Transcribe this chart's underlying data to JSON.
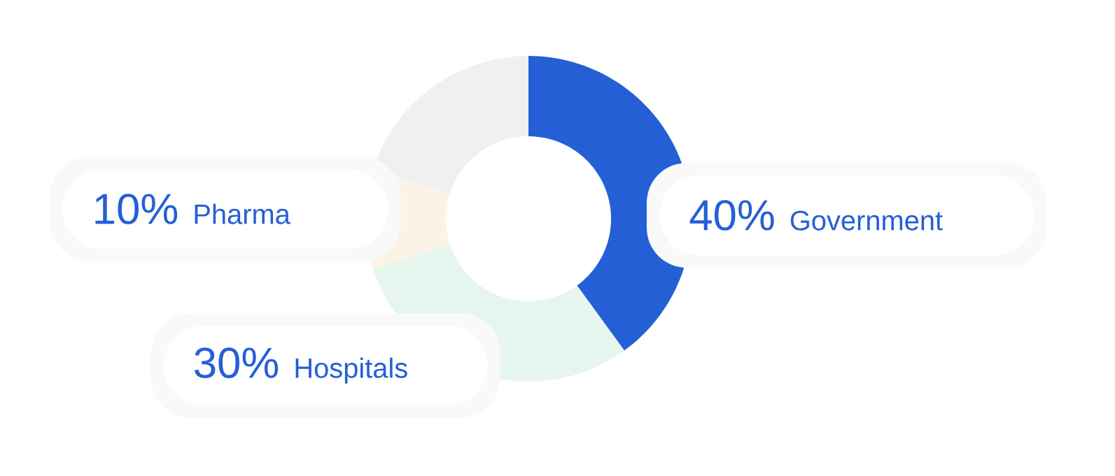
{
  "chart_data": {
    "type": "donut",
    "categories": [
      "Government",
      "Hospitals",
      "Pharma",
      null
    ],
    "values": [
      40,
      30,
      10,
      20
    ],
    "colors": [
      "#245fd6",
      "#e6f6ef",
      "#fbf3e6",
      "#f0f0f0"
    ],
    "value_labels": [
      "40%",
      "30%",
      "10%",
      null
    ]
  }
}
